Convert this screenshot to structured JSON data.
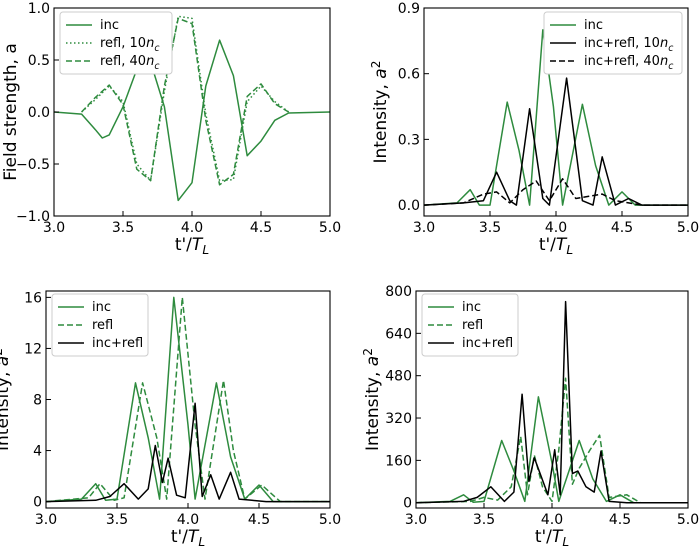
{
  "colors": {
    "inc": "#2e8b3e",
    "refl": "#2e8b3e",
    "combined": "#000000"
  },
  "chart_data": [
    {
      "type": "line",
      "xlabel": "t'/T_L",
      "ylabel": "Field strength, a",
      "xlim": [
        3.0,
        5.0
      ],
      "ylim": [
        -1.0,
        1.0
      ],
      "xticks": [
        "3.0",
        "3.5",
        "4.0",
        "4.5",
        "5.0"
      ],
      "yticks": [
        "-1.0",
        "-0.5",
        "0.0",
        "0.5",
        "1.0"
      ],
      "legend_position": "top-left",
      "series": [
        {
          "name": "inc",
          "style": "solid",
          "color": "green",
          "x": [
            3.0,
            3.2,
            3.3,
            3.35,
            3.4,
            3.5,
            3.6,
            3.7,
            3.8,
            3.9,
            4.0,
            4.1,
            4.2,
            4.3,
            4.4,
            4.5,
            4.6,
            4.7,
            5.0
          ],
          "y": [
            0,
            -0.02,
            -0.17,
            -0.25,
            -0.22,
            0.05,
            0.41,
            0.48,
            0.05,
            -0.85,
            -0.68,
            0.25,
            0.69,
            0.35,
            -0.42,
            -0.28,
            -0.08,
            -0.01,
            0
          ]
        },
        {
          "name": "refl, 10n_c",
          "style": "dotted",
          "color": "green",
          "x": [
            3.2,
            3.3,
            3.4,
            3.5,
            3.6,
            3.7,
            3.8,
            3.9,
            4.0,
            4.1,
            4.2,
            4.3,
            4.4,
            4.5,
            4.6,
            4.7
          ],
          "y": [
            0,
            0.12,
            0.25,
            0.1,
            -0.5,
            -0.66,
            0.2,
            0.92,
            0.9,
            -0.02,
            -0.66,
            -0.65,
            0.1,
            0.25,
            0.1,
            0
          ]
        },
        {
          "name": "refl, 40n_c",
          "style": "dashed",
          "color": "green",
          "x": [
            3.2,
            3.3,
            3.4,
            3.5,
            3.6,
            3.7,
            3.8,
            3.9,
            4.0,
            4.1,
            4.2,
            4.3,
            4.4,
            4.5,
            4.6,
            4.7
          ],
          "y": [
            0,
            0.14,
            0.26,
            0.07,
            -0.55,
            -0.66,
            0.25,
            0.9,
            0.85,
            -0.08,
            -0.7,
            -0.6,
            0.15,
            0.27,
            0.08,
            0
          ]
        }
      ]
    },
    {
      "type": "line",
      "xlabel": "t'/T_L",
      "ylabel": "Intensity, a^2",
      "xlim": [
        3.0,
        5.0
      ],
      "ylim": [
        -0.05,
        0.9
      ],
      "xticks": [
        "3.0",
        "3.5",
        "4.0",
        "4.5",
        "5.0"
      ],
      "yticks": [
        "0.0",
        "0.3",
        "0.6",
        "0.9"
      ],
      "legend_position": "top-right",
      "series": [
        {
          "name": "inc",
          "style": "solid",
          "color": "green",
          "x": [
            3.0,
            3.25,
            3.35,
            3.42,
            3.5,
            3.63,
            3.72,
            3.8,
            3.9,
            3.98,
            4.05,
            4.2,
            4.3,
            4.4,
            4.5,
            4.6,
            5.0
          ],
          "y": [
            0,
            0.01,
            0.07,
            0.0,
            0.0,
            0.47,
            0.25,
            0.0,
            0.8,
            0.45,
            0.0,
            0.46,
            0.18,
            0.0,
            0.06,
            0.0,
            0
          ]
        },
        {
          "name": "inc+refl, 10n_c",
          "style": "solid",
          "color": "black",
          "x": [
            3.0,
            3.3,
            3.45,
            3.55,
            3.65,
            3.7,
            3.8,
            3.9,
            3.95,
            4.08,
            4.2,
            4.28,
            4.35,
            4.45,
            4.55,
            4.65,
            5.0
          ],
          "y": [
            0,
            0.01,
            0.02,
            0.15,
            0.02,
            0.0,
            0.44,
            0.03,
            0.0,
            0.58,
            0.02,
            0.0,
            0.22,
            0.0,
            0.03,
            0.0,
            0
          ]
        },
        {
          "name": "inc+refl, 40n_c",
          "style": "dashed",
          "color": "black",
          "x": [
            3.0,
            3.3,
            3.45,
            3.55,
            3.65,
            3.75,
            3.85,
            3.95,
            4.05,
            4.15,
            4.25,
            4.35,
            4.45,
            4.55,
            4.65,
            5.0
          ],
          "y": [
            0,
            0.01,
            0.05,
            0.06,
            0.01,
            0.07,
            0.11,
            0.02,
            0.12,
            0.03,
            0.04,
            0.05,
            0.02,
            0.01,
            0.0,
            0
          ]
        }
      ]
    },
    {
      "type": "line",
      "xlabel": "t'/T_L",
      "ylabel": "Intensity, a^2",
      "xlim": [
        3.0,
        5.0
      ],
      "ylim": [
        -0.5,
        16.5
      ],
      "xticks": [
        "3.0",
        "3.5",
        "4.0",
        "4.5",
        "5.0"
      ],
      "yticks": [
        "0",
        "4",
        "8",
        "12",
        "16"
      ],
      "legend_position": "top-left",
      "series": [
        {
          "name": "inc",
          "style": "solid",
          "color": "green",
          "x": [
            3.0,
            3.25,
            3.35,
            3.42,
            3.5,
            3.63,
            3.72,
            3.8,
            3.9,
            4.0,
            4.05,
            4.2,
            4.3,
            4.4,
            4.5,
            4.6,
            5.0
          ],
          "y": [
            0,
            0.2,
            1.4,
            0.1,
            0.2,
            9.3,
            5.0,
            0.2,
            16.0,
            6.0,
            0.2,
            9.3,
            3.5,
            0.2,
            1.3,
            0.0,
            0
          ]
        },
        {
          "name": "refl",
          "style": "dashed",
          "color": "green",
          "x": [
            3.0,
            3.3,
            3.38,
            3.48,
            3.55,
            3.68,
            3.78,
            3.85,
            3.96,
            4.05,
            4.12,
            4.25,
            4.32,
            4.4,
            4.52,
            4.65,
            5.0
          ],
          "y": [
            0,
            0.3,
            1.4,
            0.1,
            0.3,
            9.3,
            5.0,
            0.2,
            16.0,
            6.0,
            0.2,
            9.5,
            4.0,
            0.2,
            1.3,
            0.0,
            0
          ]
        },
        {
          "name": "inc+refl",
          "style": "solid",
          "color": "black",
          "x": [
            3.0,
            3.35,
            3.45,
            3.55,
            3.65,
            3.72,
            3.77,
            3.82,
            3.86,
            3.92,
            3.98,
            4.05,
            4.1,
            4.16,
            4.22,
            4.3,
            4.36,
            4.45,
            4.55,
            5.0
          ],
          "y": [
            0,
            0.1,
            0.4,
            1.4,
            0.2,
            1.0,
            4.4,
            1.5,
            3.4,
            0.5,
            0.3,
            7.7,
            0.4,
            2.1,
            0.2,
            2.3,
            0.2,
            0.1,
            0.0,
            0
          ]
        }
      ]
    },
    {
      "type": "line",
      "xlabel": "t'/T_L",
      "ylabel": "Intensity, a^2",
      "xlim": [
        3.0,
        5.0
      ],
      "ylim": [
        -20,
        800
      ],
      "xticks": [
        "3.0",
        "3.5",
        "4.0",
        "4.5",
        "5.0"
      ],
      "yticks": [
        "0",
        "160",
        "320",
        "480",
        "640",
        "800"
      ],
      "legend_position": "top-left",
      "series": [
        {
          "name": "inc",
          "style": "solid",
          "color": "green",
          "x": [
            3.0,
            3.25,
            3.35,
            3.42,
            3.5,
            3.63,
            3.72,
            3.8,
            3.9,
            4.0,
            4.05,
            4.2,
            4.3,
            4.4,
            4.5,
            4.6,
            5.0
          ],
          "y": [
            0,
            5,
            30,
            2,
            5,
            235,
            120,
            5,
            400,
            150,
            5,
            235,
            90,
            5,
            30,
            0,
            0
          ]
        },
        {
          "name": "refl",
          "style": "dashed",
          "color": "green",
          "x": [
            3.0,
            3.4,
            3.5,
            3.6,
            3.7,
            3.77,
            3.82,
            3.87,
            3.93,
            4.0,
            4.05,
            4.1,
            4.15,
            4.2,
            4.28,
            4.35,
            4.42,
            4.55,
            4.65,
            5.0
          ],
          "y": [
            0,
            5,
            20,
            10,
            60,
            250,
            30,
            180,
            60,
            5,
            200,
            470,
            70,
            130,
            200,
            255,
            20,
            30,
            0,
            0
          ]
        },
        {
          "name": "inc+refl",
          "style": "solid",
          "color": "black",
          "x": [
            3.0,
            3.35,
            3.45,
            3.55,
            3.65,
            3.72,
            3.78,
            3.83,
            3.87,
            3.92,
            3.97,
            4.02,
            4.06,
            4.1,
            4.15,
            4.19,
            4.25,
            4.31,
            4.36,
            4.42,
            4.55,
            5.0
          ],
          "y": [
            0,
            5,
            20,
            60,
            5,
            40,
            410,
            80,
            170,
            100,
            30,
            200,
            30,
            760,
            110,
            120,
            60,
            40,
            195,
            5,
            0,
            0
          ]
        }
      ]
    }
  ]
}
